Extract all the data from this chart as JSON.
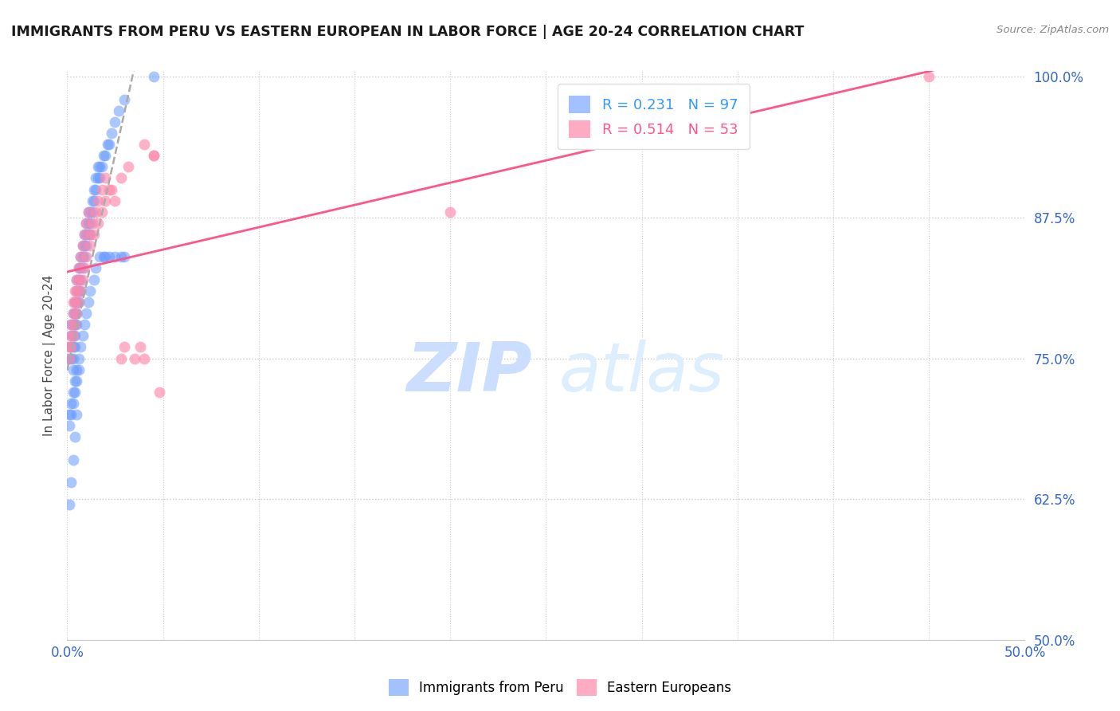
{
  "title": "IMMIGRANTS FROM PERU VS EASTERN EUROPEAN IN LABOR FORCE | AGE 20-24 CORRELATION CHART",
  "source": "Source: ZipAtlas.com",
  "ylabel": "In Labor Force | Age 20-24",
  "xlim": [
    0.0,
    0.5
  ],
  "ylim": [
    0.5,
    1.005
  ],
  "xticks": [
    0.0,
    0.05,
    0.1,
    0.15,
    0.2,
    0.25,
    0.3,
    0.35,
    0.4,
    0.45,
    0.5
  ],
  "yticks_right": [
    0.5,
    0.625,
    0.75,
    0.875,
    1.0
  ],
  "ytick_labels_right": [
    "50.0%",
    "62.5%",
    "75.0%",
    "87.5%",
    "100.0%"
  ],
  "blue_R": 0.231,
  "blue_N": 97,
  "pink_R": 0.514,
  "pink_N": 53,
  "blue_color": "#6699ff",
  "pink_color": "#ff88aa",
  "blue_legend": "Immigrants from Peru",
  "pink_legend": "Eastern Europeans",
  "blue_scatter_x": [
    0.001,
    0.001,
    0.002,
    0.002,
    0.002,
    0.002,
    0.003,
    0.003,
    0.003,
    0.003,
    0.003,
    0.003,
    0.004,
    0.004,
    0.004,
    0.004,
    0.004,
    0.005,
    0.005,
    0.005,
    0.005,
    0.005,
    0.006,
    0.006,
    0.006,
    0.006,
    0.007,
    0.007,
    0.007,
    0.007,
    0.008,
    0.008,
    0.008,
    0.009,
    0.009,
    0.009,
    0.01,
    0.01,
    0.01,
    0.011,
    0.011,
    0.011,
    0.012,
    0.012,
    0.012,
    0.013,
    0.013,
    0.014,
    0.014,
    0.015,
    0.015,
    0.016,
    0.016,
    0.017,
    0.017,
    0.018,
    0.019,
    0.02,
    0.021,
    0.022,
    0.023,
    0.025,
    0.027,
    0.03,
    0.001,
    0.001,
    0.002,
    0.002,
    0.003,
    0.003,
    0.004,
    0.004,
    0.005,
    0.005,
    0.006,
    0.006,
    0.007,
    0.008,
    0.009,
    0.01,
    0.011,
    0.012,
    0.014,
    0.015,
    0.017,
    0.019,
    0.02,
    0.022,
    0.025,
    0.028,
    0.03,
    0.001,
    0.002,
    0.003,
    0.004,
    0.005,
    0.045
  ],
  "blue_scatter_y": [
    0.76,
    0.75,
    0.78,
    0.77,
    0.76,
    0.75,
    0.79,
    0.78,
    0.77,
    0.76,
    0.75,
    0.74,
    0.8,
    0.79,
    0.78,
    0.77,
    0.76,
    0.82,
    0.81,
    0.8,
    0.79,
    0.78,
    0.83,
    0.82,
    0.81,
    0.8,
    0.84,
    0.83,
    0.82,
    0.81,
    0.85,
    0.84,
    0.83,
    0.86,
    0.85,
    0.84,
    0.87,
    0.86,
    0.85,
    0.88,
    0.87,
    0.86,
    0.88,
    0.87,
    0.86,
    0.89,
    0.88,
    0.9,
    0.89,
    0.91,
    0.9,
    0.92,
    0.91,
    0.92,
    0.91,
    0.92,
    0.93,
    0.93,
    0.94,
    0.94,
    0.95,
    0.96,
    0.97,
    0.98,
    0.7,
    0.69,
    0.71,
    0.7,
    0.72,
    0.71,
    0.73,
    0.72,
    0.74,
    0.73,
    0.75,
    0.74,
    0.76,
    0.77,
    0.78,
    0.79,
    0.8,
    0.81,
    0.82,
    0.83,
    0.84,
    0.84,
    0.84,
    0.84,
    0.84,
    0.84,
    0.84,
    0.62,
    0.64,
    0.66,
    0.68,
    0.7,
    1.0
  ],
  "pink_scatter_x": [
    0.001,
    0.002,
    0.002,
    0.003,
    0.003,
    0.004,
    0.004,
    0.005,
    0.005,
    0.006,
    0.006,
    0.007,
    0.008,
    0.009,
    0.01,
    0.011,
    0.012,
    0.013,
    0.015,
    0.016,
    0.018,
    0.02,
    0.022,
    0.025,
    0.028,
    0.03,
    0.035,
    0.038,
    0.04,
    0.045,
    0.048,
    0.001,
    0.002,
    0.003,
    0.004,
    0.005,
    0.006,
    0.007,
    0.008,
    0.009,
    0.01,
    0.012,
    0.014,
    0.016,
    0.018,
    0.02,
    0.023,
    0.028,
    0.032,
    0.04,
    0.045,
    0.2,
    0.45
  ],
  "pink_scatter_y": [
    0.76,
    0.78,
    0.77,
    0.8,
    0.79,
    0.81,
    0.8,
    0.82,
    0.81,
    0.83,
    0.82,
    0.84,
    0.85,
    0.86,
    0.87,
    0.88,
    0.86,
    0.87,
    0.88,
    0.89,
    0.9,
    0.91,
    0.9,
    0.89,
    0.75,
    0.76,
    0.75,
    0.76,
    0.75,
    0.93,
    0.72,
    0.75,
    0.76,
    0.77,
    0.78,
    0.79,
    0.8,
    0.81,
    0.82,
    0.83,
    0.84,
    0.85,
    0.86,
    0.87,
    0.88,
    0.89,
    0.9,
    0.91,
    0.92,
    0.94,
    0.93,
    0.88,
    1.0
  ]
}
